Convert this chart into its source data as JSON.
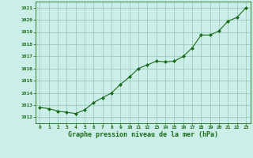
{
  "x": [
    0,
    1,
    2,
    3,
    4,
    5,
    6,
    7,
    8,
    9,
    10,
    11,
    12,
    13,
    14,
    15,
    16,
    17,
    18,
    19,
    20,
    21,
    22,
    23
  ],
  "y": [
    1012.8,
    1012.7,
    1012.5,
    1012.4,
    1012.3,
    1012.6,
    1013.2,
    1013.6,
    1014.0,
    1014.7,
    1015.3,
    1016.0,
    1016.3,
    1016.6,
    1016.55,
    1016.6,
    1017.0,
    1017.7,
    1018.75,
    1018.75,
    1019.1,
    1019.9,
    1020.2,
    1021.0
  ],
  "line_color": "#1a6b1a",
  "marker_color": "#1a6b1a",
  "bg_color": "#cceee8",
  "grid_color": "#99ccbb",
  "xlabel": "Graphe pression niveau de la mer (hPa)",
  "xlabel_color": "#1a6b1a",
  "tick_color": "#1a6b1a",
  "ylim": [
    1011.5,
    1021.5
  ],
  "yticks": [
    1012,
    1013,
    1014,
    1015,
    1016,
    1017,
    1018,
    1019,
    1020,
    1021
  ],
  "xlim": [
    -0.5,
    23.5
  ],
  "xticks": [
    0,
    1,
    2,
    3,
    4,
    5,
    6,
    7,
    8,
    9,
    10,
    11,
    12,
    13,
    14,
    15,
    16,
    17,
    18,
    19,
    20,
    21,
    22,
    23
  ]
}
